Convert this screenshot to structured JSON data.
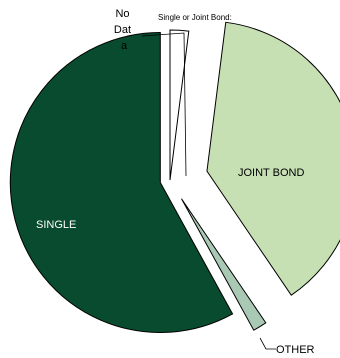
{
  "chart_data": {
    "type": "pie",
    "title": "Single or Joint Bond:",
    "slices": [
      {
        "label": "No Dat a",
        "label_lines": [
          "No",
          "Dat",
          "a"
        ],
        "value": 2.0,
        "color": "#ffffff"
      },
      {
        "label": "JOINT BOND",
        "value": 38.5,
        "color": "#c6e0b4"
      },
      {
        "label": "OTHER",
        "value": 1.5,
        "color": "#a9c9b5"
      },
      {
        "label": "SINGLE",
        "value": 58.0,
        "color": "#084b2e"
      }
    ],
    "legend": "none"
  }
}
